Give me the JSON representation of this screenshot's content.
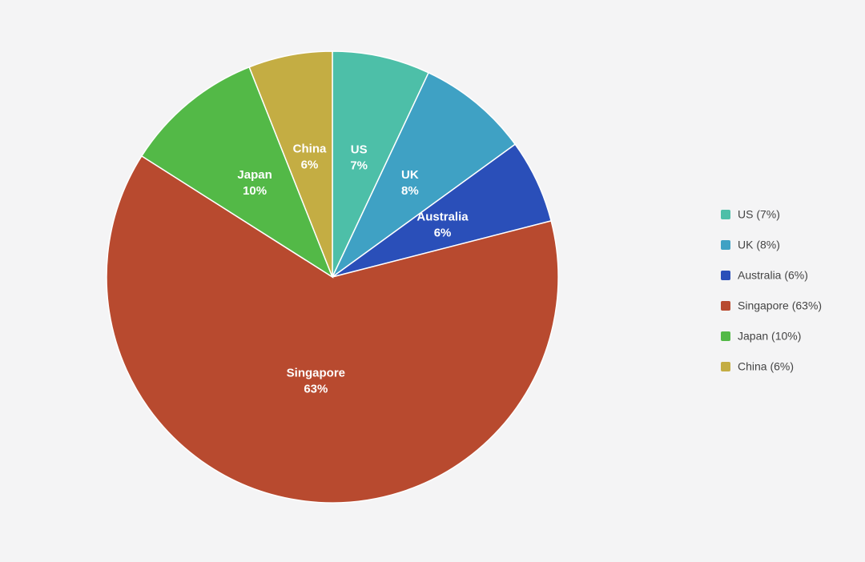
{
  "chart_data": {
    "type": "pie",
    "categories": [
      "US",
      "UK",
      "Australia",
      "Singapore",
      "Japan",
      "China"
    ],
    "values": [
      7,
      8,
      6,
      63,
      10,
      6
    ],
    "value_labels": [
      "7%",
      "8%",
      "6%",
      "63%",
      "10%",
      "6%"
    ],
    "legend_labels": [
      "US (7%)",
      "UK (8%)",
      "Australia (6%)",
      "Singapore (63%)",
      "Japan (10%)",
      "China (6%)"
    ],
    "colors": [
      "#4dbfa8",
      "#3fa1c4",
      "#2a4fb9",
      "#b84a2f",
      "#53b947",
      "#c4ad43"
    ],
    "legend": "right"
  }
}
